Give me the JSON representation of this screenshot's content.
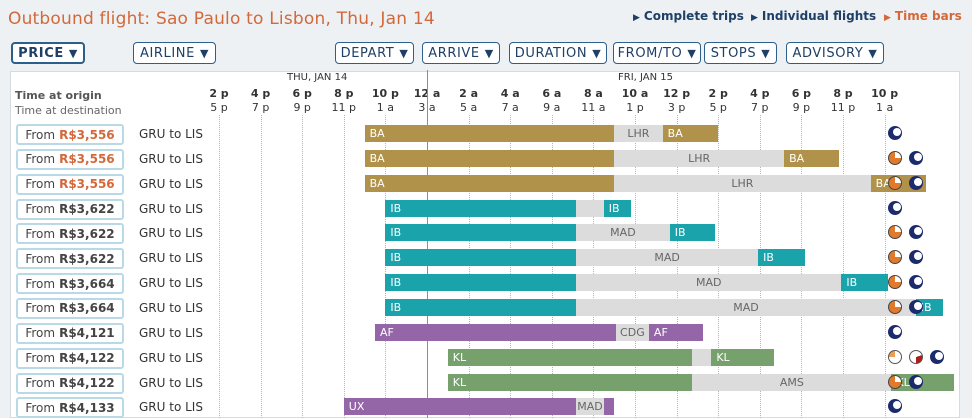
{
  "title": "Outbound flight: Sao Paulo to Lisbon, Thu, Jan 14",
  "view_links": [
    {
      "label": "Complete trips",
      "active": false
    },
    {
      "label": "Individual flights",
      "active": false
    },
    {
      "label": "Time bars",
      "active": true
    }
  ],
  "filters": [
    {
      "label": "PRICE",
      "active": true
    },
    {
      "label": "AIRLINE",
      "active": false
    },
    {
      "label": "DEPART",
      "active": false
    },
    {
      "label": "ARRIVE",
      "active": false
    },
    {
      "label": "DURATION",
      "active": false
    },
    {
      "label": "FROM/TO",
      "active": false
    },
    {
      "label": "STOPS",
      "active": false
    },
    {
      "label": "ADVISORY",
      "active": false
    }
  ],
  "header": {
    "time_at_origin": "Time at origin",
    "time_at_destination": "Time at destination"
  },
  "days": [
    "THU, JAN 14",
    "FRI, JAN 15"
  ],
  "ticks_origin": [
    "2 p",
    "4 p",
    "6 p",
    "8 p",
    "10 p",
    "12 a",
    "2 a",
    "4 a",
    "6 a",
    "8 a",
    "10 a",
    "12 p",
    "2 p",
    "4 p",
    "6 p",
    "8 p",
    "10 p"
  ],
  "ticks_destination": [
    "5 p",
    "7 p",
    "9 p",
    "11 p",
    "1 a",
    "3 a",
    "5 a",
    "7 a",
    "9 a",
    "11 a",
    "1 p",
    "3 p",
    "5 p",
    "7 p",
    "9 p",
    "11 p",
    "1 a"
  ],
  "airline_colors": {
    "BA": "#b0924a",
    "IB": "#1aa3ab",
    "AF": "#9566a7",
    "KL": "#76a06c",
    "UX": "#9566a7"
  },
  "flights": [
    {
      "from_label": "From",
      "price": "R$3,556",
      "highlight": true,
      "route": "GRU to LIS",
      "advisory": [
        "night"
      ],
      "segments": [
        {
          "type": "flight",
          "label": "BA",
          "start": 21.0,
          "end": 33.0
        },
        {
          "type": "layover",
          "label": "LHR",
          "start": 33.0,
          "end": 35.33
        },
        {
          "type": "flight",
          "label": "BA",
          "start": 35.33,
          "end": 38.0
        }
      ]
    },
    {
      "from_label": "From",
      "price": "R$3,556",
      "highlight": true,
      "route": "GRU to LIS",
      "advisory": [
        "day",
        "night"
      ],
      "segments": [
        {
          "type": "flight",
          "label": "BA",
          "start": 21.0,
          "end": 33.0
        },
        {
          "type": "layover",
          "label": "LHR",
          "start": 33.0,
          "end": 41.17
        },
        {
          "type": "flight",
          "label": "BA",
          "start": 41.17,
          "end": 43.83
        }
      ]
    },
    {
      "from_label": "From",
      "price": "R$3,556",
      "highlight": true,
      "route": "GRU to LIS",
      "advisory": [
        "day",
        "night"
      ],
      "segments": [
        {
          "type": "flight",
          "label": "BA",
          "start": 21.0,
          "end": 33.0
        },
        {
          "type": "layover",
          "label": "LHR",
          "start": 33.0,
          "end": 45.33
        },
        {
          "type": "flight",
          "label": "BA",
          "start": 45.33,
          "end": 48.0
        }
      ]
    },
    {
      "from_label": "From",
      "price": "R$3,622",
      "highlight": false,
      "route": "GRU to LIS",
      "advisory": [
        "night"
      ],
      "segments": [
        {
          "type": "flight",
          "label": "IB",
          "start": 22.0,
          "end": 31.17
        },
        {
          "type": "layover",
          "label": "",
          "start": 31.17,
          "end": 32.5
        },
        {
          "type": "flight",
          "label": "IB",
          "start": 32.5,
          "end": 33.83
        }
      ]
    },
    {
      "from_label": "From",
      "price": "R$3,622",
      "highlight": false,
      "route": "GRU to LIS",
      "advisory": [
        "day",
        "night"
      ],
      "segments": [
        {
          "type": "flight",
          "label": "IB",
          "start": 22.0,
          "end": 31.17
        },
        {
          "type": "layover",
          "label": "MAD",
          "start": 31.17,
          "end": 35.67
        },
        {
          "type": "flight",
          "label": "IB",
          "start": 35.67,
          "end": 37.83
        }
      ]
    },
    {
      "from_label": "From",
      "price": "R$3,622",
      "highlight": false,
      "route": "GRU to LIS",
      "advisory": [
        "day",
        "night"
      ],
      "segments": [
        {
          "type": "flight",
          "label": "IB",
          "start": 22.0,
          "end": 31.17
        },
        {
          "type": "layover",
          "label": "MAD",
          "start": 31.17,
          "end": 39.92
        },
        {
          "type": "flight",
          "label": "IB",
          "start": 39.92,
          "end": 42.17
        }
      ]
    },
    {
      "from_label": "From",
      "price": "R$3,664",
      "highlight": false,
      "route": "GRU to LIS",
      "advisory": [
        "day",
        "night"
      ],
      "segments": [
        {
          "type": "flight",
          "label": "IB",
          "start": 22.0,
          "end": 31.17
        },
        {
          "type": "layover",
          "label": "MAD",
          "start": 31.17,
          "end": 43.92
        },
        {
          "type": "flight",
          "label": "IB",
          "start": 43.92,
          "end": 46.17
        }
      ]
    },
    {
      "from_label": "From",
      "price": "R$3,664",
      "highlight": false,
      "route": "GRU to LIS",
      "advisory": [
        "day",
        "night"
      ],
      "segments": [
        {
          "type": "flight",
          "label": "IB",
          "start": 22.0,
          "end": 31.17
        },
        {
          "type": "layover",
          "label": "MAD",
          "start": 31.17,
          "end": 47.5
        },
        {
          "type": "flight",
          "label": "IB",
          "start": 47.5,
          "end": 48.83
        }
      ]
    },
    {
      "from_label": "From",
      "price": "R$4,121",
      "highlight": false,
      "route": "GRU to LIS",
      "advisory": [
        "night"
      ],
      "segments": [
        {
          "type": "flight",
          "label": "AF",
          "start": 21.5,
          "end": 33.08
        },
        {
          "type": "layover",
          "label": "CDG",
          "start": 33.08,
          "end": 34.67
        },
        {
          "type": "flight",
          "label": "AF",
          "start": 34.67,
          "end": 37.25
        }
      ]
    },
    {
      "from_label": "From",
      "price": "R$4,122",
      "highlight": false,
      "route": "GRU to LIS",
      "advisory": [
        "dayl",
        "red",
        "night"
      ],
      "segments": [
        {
          "type": "flight",
          "label": "KL",
          "start": 25.0,
          "end": 36.75
        },
        {
          "type": "layover",
          "label": "",
          "start": 36.75,
          "end": 37.67
        },
        {
          "type": "flight",
          "label": "KL",
          "start": 37.67,
          "end": 40.67
        }
      ]
    },
    {
      "from_label": "From",
      "price": "R$4,122",
      "highlight": false,
      "route": "GRU to LIS",
      "advisory": [
        "day",
        "night"
      ],
      "segments": [
        {
          "type": "flight",
          "label": "KL",
          "start": 25.0,
          "end": 36.75
        },
        {
          "type": "layover",
          "label": "AMS",
          "start": 36.75,
          "end": 46.33
        },
        {
          "type": "flight",
          "label": "KL",
          "start": 46.33,
          "end": 49.33
        }
      ]
    },
    {
      "from_label": "From",
      "price": "R$4,133",
      "highlight": false,
      "route": "GRU to LIS",
      "advisory": [
        "night"
      ],
      "segments": [
        {
          "type": "flight",
          "label": "UX",
          "start": 20.0,
          "end": 31.17
        },
        {
          "type": "layover",
          "label": "MAD",
          "start": 31.17,
          "end": 32.5
        },
        {
          "type": "flight",
          "label": "",
          "start": 32.5,
          "end": 33.0
        }
      ]
    }
  ]
}
